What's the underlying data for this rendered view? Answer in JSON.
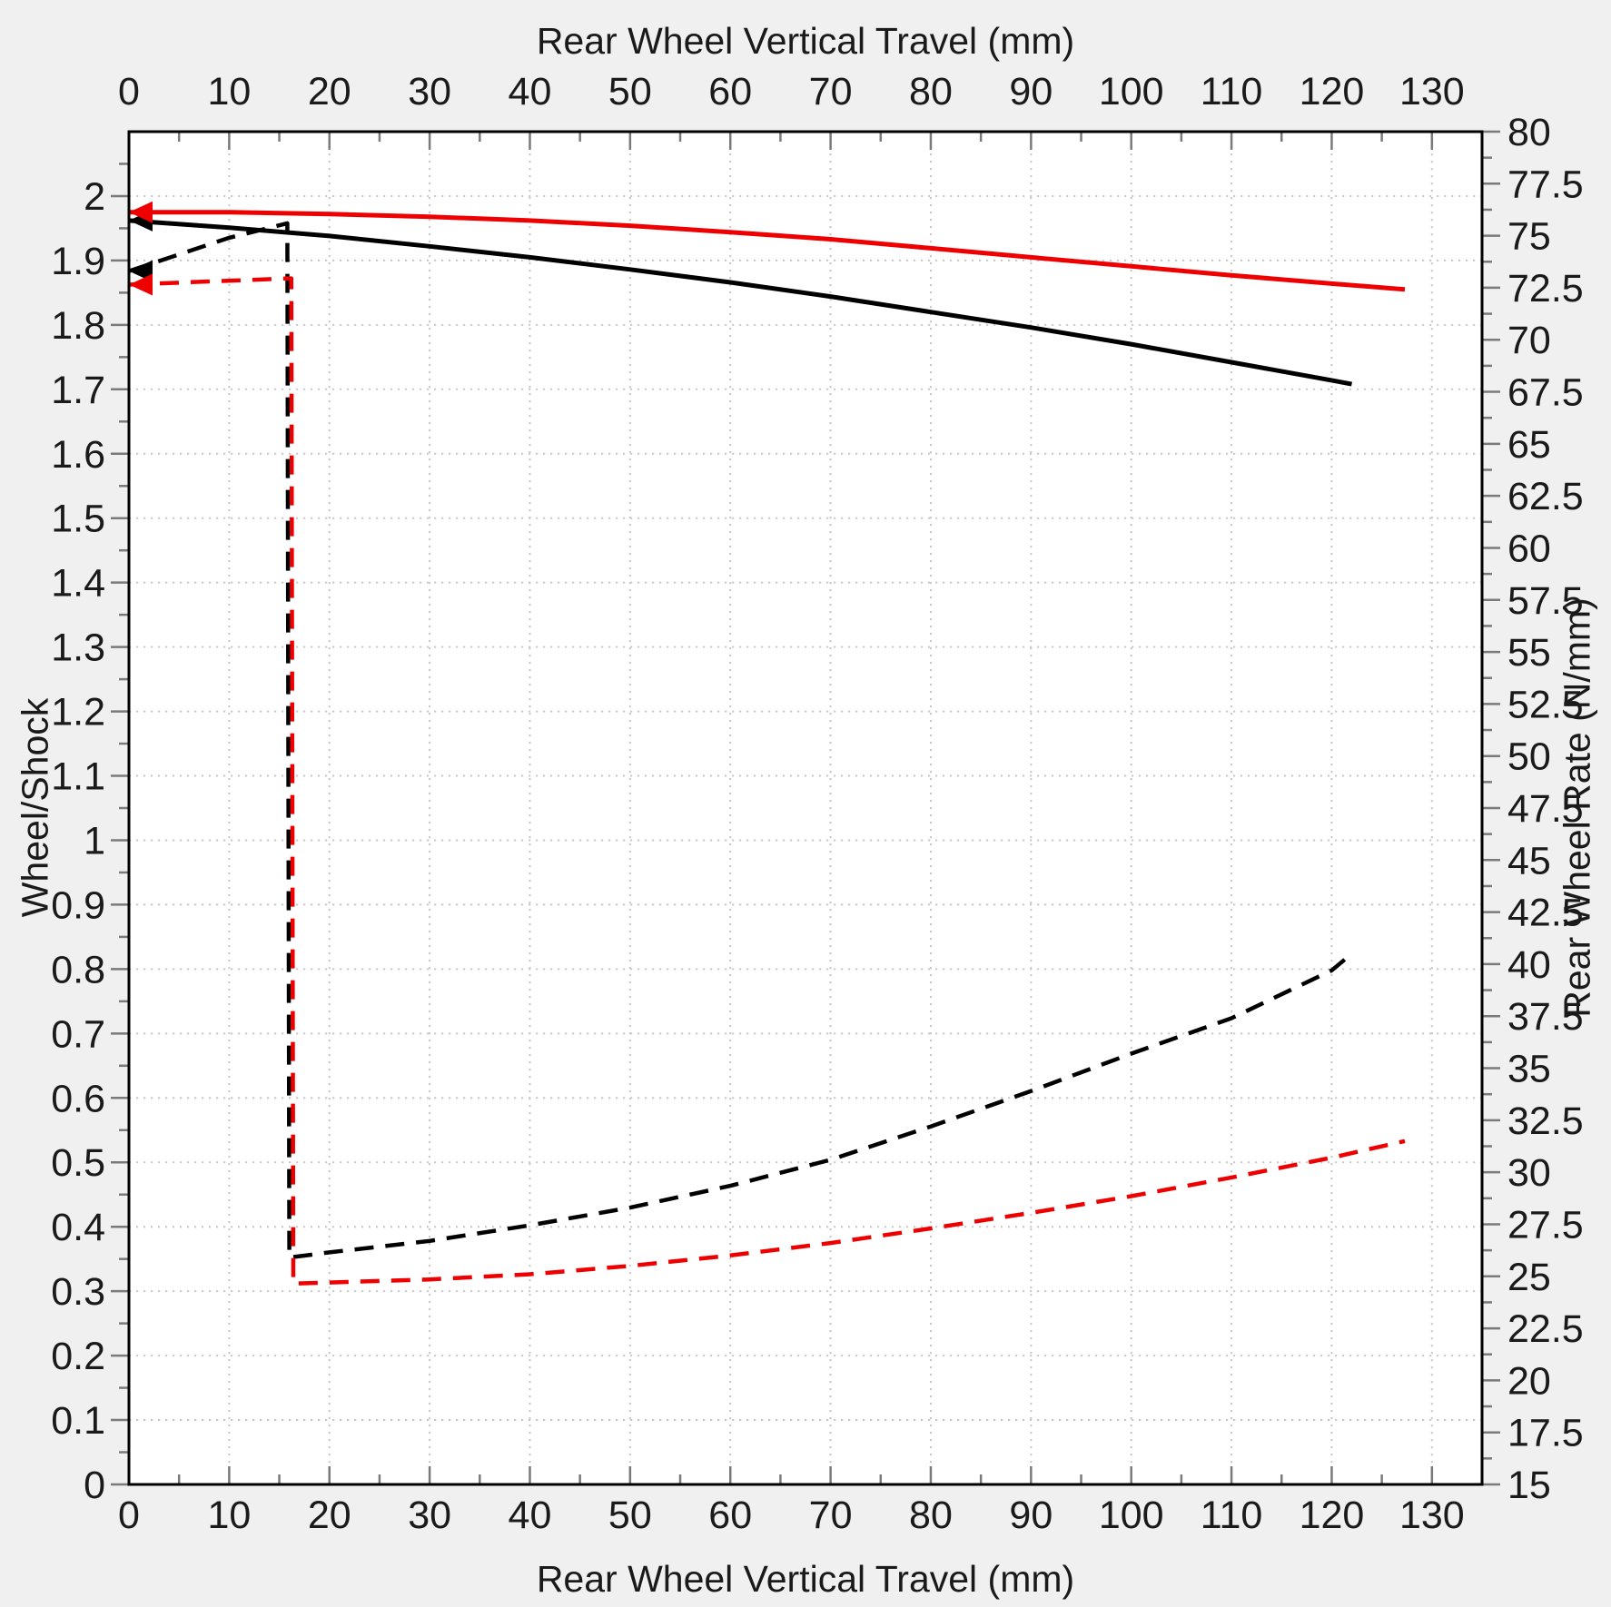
{
  "chart_data": {
    "type": "line",
    "title_top": "Rear Wheel Vertical Travel (mm)",
    "xlabel": "Rear Wheel Vertical Travel (mm)",
    "ylabel_left": "Wheel/Shock",
    "ylabel_right": "Rear Wheel Rate (N/mm)",
    "legend": "none",
    "grid": {
      "style": "dotted",
      "color": "#c9c9c9",
      "x_interval_mm": 10,
      "y_interval_left": 0.1
    },
    "colors": {
      "background": "#f0f0f0",
      "plot_background": "#ffffff",
      "frame": "#000000",
      "tick": "#7a7a7a",
      "text": "#1a1a1a",
      "series_black": "#000000",
      "series_red": "#ee0000"
    },
    "x_axis": {
      "min": 0,
      "max": 135,
      "major_ticks": [
        0,
        10,
        20,
        30,
        40,
        50,
        60,
        70,
        80,
        90,
        100,
        110,
        120,
        130
      ],
      "major_labels": [
        "0",
        "10",
        "20",
        "30",
        "40",
        "50",
        "60",
        "70",
        "80",
        "90",
        "100",
        "110",
        "120",
        "130"
      ],
      "minor_ticks": [
        5,
        15,
        25,
        35,
        45,
        55,
        65,
        75,
        85,
        95,
        105,
        115,
        125
      ]
    },
    "y_left": {
      "min": 0,
      "max": 2.1,
      "major_ticks": [
        0,
        0.1,
        0.2,
        0.3,
        0.4,
        0.5,
        0.6,
        0.7,
        0.8,
        0.9,
        1,
        1.1,
        1.2,
        1.3,
        1.4,
        1.5,
        1.6,
        1.7,
        1.8,
        1.9,
        2
      ],
      "major_labels": [
        "0",
        "0.1",
        "0.2",
        "0.3",
        "0.4",
        "0.5",
        "0.6",
        "0.7",
        "0.8",
        "0.9",
        "1",
        "1.1",
        "1.2",
        "1.3",
        "1.4",
        "1.5",
        "1.6",
        "1.7",
        "1.8",
        "1.9",
        "2"
      ],
      "minor_ticks": [
        0.05,
        0.15,
        0.25,
        0.35,
        0.45,
        0.55,
        0.65,
        0.75,
        0.85,
        0.95,
        1.05,
        1.15,
        1.25,
        1.35,
        1.45,
        1.55,
        1.65,
        1.75,
        1.85,
        1.95,
        2.05
      ]
    },
    "y_right": {
      "min": 15,
      "max": 80,
      "major_ticks": [
        15,
        17.5,
        20,
        22.5,
        25,
        27.5,
        30,
        32.5,
        35,
        37.5,
        40,
        42.5,
        45,
        47.5,
        50,
        52.5,
        55,
        57.5,
        60,
        62.5,
        65,
        67.5,
        70,
        72.5,
        75,
        77.5,
        80
      ],
      "major_labels": [
        "15",
        "17.5",
        "20",
        "22.5",
        "25",
        "27.5",
        "30",
        "32.5",
        "35",
        "37.5",
        "40",
        "42.5",
        "45",
        "47.5",
        "50",
        "52.5",
        "55",
        "57.5",
        "60",
        "62.5",
        "65",
        "67.5",
        "70",
        "72.5",
        "75",
        "77.5",
        "80"
      ],
      "minor_ticks": [
        16.25,
        18.75,
        21.25,
        23.75,
        26.25,
        28.75,
        31.25,
        33.75,
        36.25,
        38.75,
        41.25,
        43.75,
        46.25,
        48.75,
        51.25,
        53.75,
        56.25,
        58.75,
        61.25,
        63.75,
        66.25,
        68.75,
        71.25,
        73.75,
        76.25,
        78.75
      ]
    },
    "series": [
      {
        "name": "leverage-ratio-black-solid",
        "axis": "left",
        "style": "solid",
        "color_key": "series_black",
        "start_arrow": true,
        "points": [
          [
            0,
            1.962
          ],
          [
            10,
            1.951
          ],
          [
            20,
            1.938
          ],
          [
            30,
            1.922
          ],
          [
            40,
            1.905
          ],
          [
            50,
            1.886
          ],
          [
            60,
            1.866
          ],
          [
            70,
            1.844
          ],
          [
            80,
            1.82
          ],
          [
            90,
            1.796
          ],
          [
            100,
            1.77
          ],
          [
            110,
            1.742
          ],
          [
            120,
            1.714
          ],
          [
            122,
            1.708
          ]
        ]
      },
      {
        "name": "leverage-ratio-red-solid",
        "axis": "left",
        "style": "solid",
        "color_key": "series_red",
        "start_arrow": true,
        "points": [
          [
            0,
            1.975
          ],
          [
            10,
            1.975
          ],
          [
            20,
            1.972
          ],
          [
            30,
            1.968
          ],
          [
            40,
            1.962
          ],
          [
            50,
            1.954
          ],
          [
            60,
            1.944
          ],
          [
            70,
            1.933
          ],
          [
            80,
            1.919
          ],
          [
            90,
            1.905
          ],
          [
            100,
            1.891
          ],
          [
            110,
            1.877
          ],
          [
            120,
            1.864
          ],
          [
            127.3,
            1.855
          ]
        ]
      },
      {
        "name": "wheel-rate-black-dashed",
        "axis": "right",
        "style": "dashed",
        "color_key": "series_black",
        "start_arrow": true,
        "points": [
          [
            0,
            73.3
          ],
          [
            5,
            74.1
          ],
          [
            10,
            74.9
          ],
          [
            15.8,
            75.6
          ],
          [
            16,
            25.9
          ],
          [
            20,
            26.15
          ],
          [
            30,
            26.7
          ],
          [
            40,
            27.45
          ],
          [
            50,
            28.3
          ],
          [
            60,
            29.35
          ],
          [
            70,
            30.6
          ],
          [
            80,
            32.2
          ],
          [
            90,
            33.9
          ],
          [
            100,
            35.7
          ],
          [
            110,
            37.4
          ],
          [
            120,
            39.7
          ],
          [
            122,
            40.5
          ]
        ]
      },
      {
        "name": "wheel-rate-red-dashed",
        "axis": "right",
        "style": "dashed",
        "color_key": "series_red",
        "start_arrow": true,
        "points": [
          [
            0,
            72.65
          ],
          [
            8,
            72.8
          ],
          [
            16.2,
            72.95
          ],
          [
            16.4,
            24.65
          ],
          [
            20,
            24.7
          ],
          [
            30,
            24.85
          ],
          [
            40,
            25.1
          ],
          [
            50,
            25.5
          ],
          [
            60,
            26.0
          ],
          [
            70,
            26.6
          ],
          [
            80,
            27.3
          ],
          [
            90,
            28.05
          ],
          [
            100,
            28.85
          ],
          [
            110,
            29.75
          ],
          [
            120,
            30.7
          ],
          [
            127.3,
            31.5
          ]
        ]
      }
    ]
  }
}
